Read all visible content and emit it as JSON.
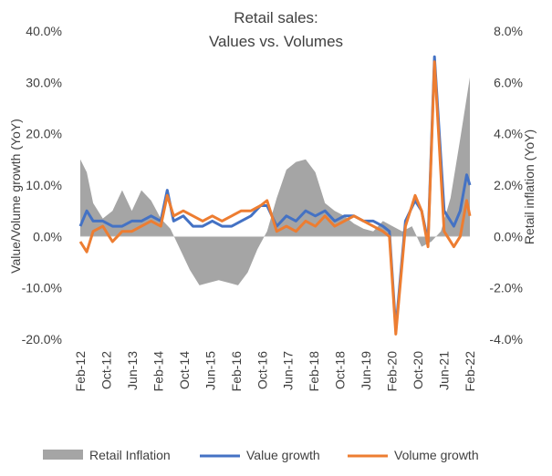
{
  "chart_data": {
    "type": "line",
    "title_line1": "Retail sales:",
    "title_line2": "Values vs. Volumes",
    "left_axis_label": "Value/Volume growth (YoY)",
    "right_axis_label": "Retail inflation (YoY)",
    "left_ticks": [
      "40.0%",
      "30.0%",
      "20.0%",
      "10.0%",
      "0.0%",
      "-10.0%",
      "-20.0%"
    ],
    "left_tick_values": [
      40,
      30,
      20,
      10,
      0,
      -10,
      -20
    ],
    "right_ticks": [
      "8.0%",
      "6.0%",
      "4.0%",
      "2.0%",
      "0.0%",
      "-2.0%",
      "-4.0%"
    ],
    "right_tick_values": [
      8,
      6,
      4,
      2,
      0,
      -2,
      -4
    ],
    "ylim_left": [
      -20,
      40
    ],
    "ylim_right": [
      -4,
      8
    ],
    "x_tick_labels": [
      "Feb-12",
      "Oct-12",
      "Jun-13",
      "Feb-14",
      "Oct-14",
      "Jun-15",
      "Feb-16",
      "Oct-16",
      "Jun-17",
      "Feb-18",
      "Oct-18",
      "Jun-19",
      "Feb-20",
      "Oct-20",
      "Jun-21",
      "Feb-22"
    ],
    "x_range": [
      "2012-02",
      "2022-03"
    ],
    "legend": [
      "Retail Inflation",
      "Value growth",
      "Volume growth"
    ],
    "legend_position": "bottom",
    "colors": {
      "inflation": "#A5A5A5",
      "value": "#4472C4",
      "volume": "#ED7D31",
      "text": "#404040"
    },
    "series": [
      {
        "name": "Retail Inflation",
        "type": "area",
        "axis": "right",
        "points": [
          [
            "2012-02",
            3.0
          ],
          [
            "2012-04",
            2.5
          ],
          [
            "2012-06",
            1.3
          ],
          [
            "2012-09",
            0.7
          ],
          [
            "2012-12",
            1.0
          ],
          [
            "2013-03",
            1.8
          ],
          [
            "2013-06",
            1.0
          ],
          [
            "2013-09",
            1.8
          ],
          [
            "2013-12",
            1.4
          ],
          [
            "2014-03",
            0.7
          ],
          [
            "2014-06",
            0.3
          ],
          [
            "2014-09",
            -0.5
          ],
          [
            "2014-12",
            -1.3
          ],
          [
            "2015-03",
            -1.9
          ],
          [
            "2015-06",
            -1.8
          ],
          [
            "2015-09",
            -1.7
          ],
          [
            "2015-12",
            -1.8
          ],
          [
            "2016-03",
            -1.9
          ],
          [
            "2016-06",
            -1.4
          ],
          [
            "2016-09",
            -0.5
          ],
          [
            "2016-12",
            0.2
          ],
          [
            "2017-03",
            1.5
          ],
          [
            "2017-06",
            2.6
          ],
          [
            "2017-09",
            2.9
          ],
          [
            "2017-12",
            3.0
          ],
          [
            "2018-03",
            2.5
          ],
          [
            "2018-06",
            1.3
          ],
          [
            "2018-09",
            1.0
          ],
          [
            "2018-12",
            0.8
          ],
          [
            "2019-03",
            0.5
          ],
          [
            "2019-06",
            0.3
          ],
          [
            "2019-09",
            0.2
          ],
          [
            "2019-12",
            0.6
          ],
          [
            "2020-03",
            0.4
          ],
          [
            "2020-06",
            0.2
          ],
          [
            "2020-09",
            0.4
          ],
          [
            "2020-12",
            -0.4
          ],
          [
            "2021-03",
            -0.2
          ],
          [
            "2021-06",
            0.2
          ],
          [
            "2021-09",
            1.5
          ],
          [
            "2021-12",
            3.8
          ],
          [
            "2022-03",
            6.2
          ]
        ]
      },
      {
        "name": "Value growth",
        "type": "line",
        "axis": "left",
        "points": [
          [
            "2012-02",
            2
          ],
          [
            "2012-04",
            5
          ],
          [
            "2012-06",
            3
          ],
          [
            "2012-09",
            3
          ],
          [
            "2012-12",
            2
          ],
          [
            "2013-03",
            2
          ],
          [
            "2013-06",
            3
          ],
          [
            "2013-09",
            3
          ],
          [
            "2013-12",
            4
          ],
          [
            "2014-03",
            3
          ],
          [
            "2014-05",
            9
          ],
          [
            "2014-07",
            3
          ],
          [
            "2014-10",
            4
          ],
          [
            "2015-01",
            2
          ],
          [
            "2015-04",
            2
          ],
          [
            "2015-07",
            3
          ],
          [
            "2015-10",
            2
          ],
          [
            "2016-01",
            2
          ],
          [
            "2016-04",
            3
          ],
          [
            "2016-07",
            4
          ],
          [
            "2016-10",
            6
          ],
          [
            "2016-12",
            6
          ],
          [
            "2017-03",
            2
          ],
          [
            "2017-06",
            4
          ],
          [
            "2017-09",
            3
          ],
          [
            "2017-12",
            5
          ],
          [
            "2018-03",
            4
          ],
          [
            "2018-06",
            5
          ],
          [
            "2018-09",
            3
          ],
          [
            "2018-12",
            4
          ],
          [
            "2019-03",
            4
          ],
          [
            "2019-06",
            3
          ],
          [
            "2019-09",
            3
          ],
          [
            "2019-12",
            2
          ],
          [
            "2020-02",
            1
          ],
          [
            "2020-04",
            -18
          ],
          [
            "2020-07",
            3
          ],
          [
            "2020-10",
            7
          ],
          [
            "2020-12",
            5
          ],
          [
            "2021-02",
            -1
          ],
          [
            "2021-04",
            35
          ],
          [
            "2021-07",
            5
          ],
          [
            "2021-10",
            2
          ],
          [
            "2021-12",
            5
          ],
          [
            "2022-02",
            12
          ],
          [
            "2022-03",
            10
          ]
        ]
      },
      {
        "name": "Volume growth",
        "type": "line",
        "axis": "left",
        "points": [
          [
            "2012-02",
            -1
          ],
          [
            "2012-04",
            -3
          ],
          [
            "2012-06",
            1
          ],
          [
            "2012-09",
            2
          ],
          [
            "2012-12",
            -1
          ],
          [
            "2013-03",
            1
          ],
          [
            "2013-06",
            1
          ],
          [
            "2013-09",
            2
          ],
          [
            "2013-12",
            3
          ],
          [
            "2014-03",
            2
          ],
          [
            "2014-05",
            8
          ],
          [
            "2014-07",
            4
          ],
          [
            "2014-10",
            5
          ],
          [
            "2015-01",
            4
          ],
          [
            "2015-04",
            3
          ],
          [
            "2015-07",
            4
          ],
          [
            "2015-10",
            3
          ],
          [
            "2016-01",
            4
          ],
          [
            "2016-04",
            5
          ],
          [
            "2016-07",
            5
          ],
          [
            "2016-10",
            6
          ],
          [
            "2016-12",
            7
          ],
          [
            "2017-03",
            1
          ],
          [
            "2017-06",
            2
          ],
          [
            "2017-09",
            1
          ],
          [
            "2017-12",
            3
          ],
          [
            "2018-03",
            2
          ],
          [
            "2018-06",
            4
          ],
          [
            "2018-09",
            2
          ],
          [
            "2018-12",
            3
          ],
          [
            "2019-03",
            4
          ],
          [
            "2019-06",
            3
          ],
          [
            "2019-09",
            2
          ],
          [
            "2019-12",
            1
          ],
          [
            "2020-02",
            0
          ],
          [
            "2020-04",
            -19
          ],
          [
            "2020-07",
            2
          ],
          [
            "2020-10",
            8
          ],
          [
            "2020-12",
            5
          ],
          [
            "2021-02",
            -2
          ],
          [
            "2021-04",
            34
          ],
          [
            "2021-07",
            1
          ],
          [
            "2021-10",
            -2
          ],
          [
            "2021-12",
            0
          ],
          [
            "2022-02",
            7
          ],
          [
            "2022-03",
            4
          ]
        ]
      }
    ]
  }
}
